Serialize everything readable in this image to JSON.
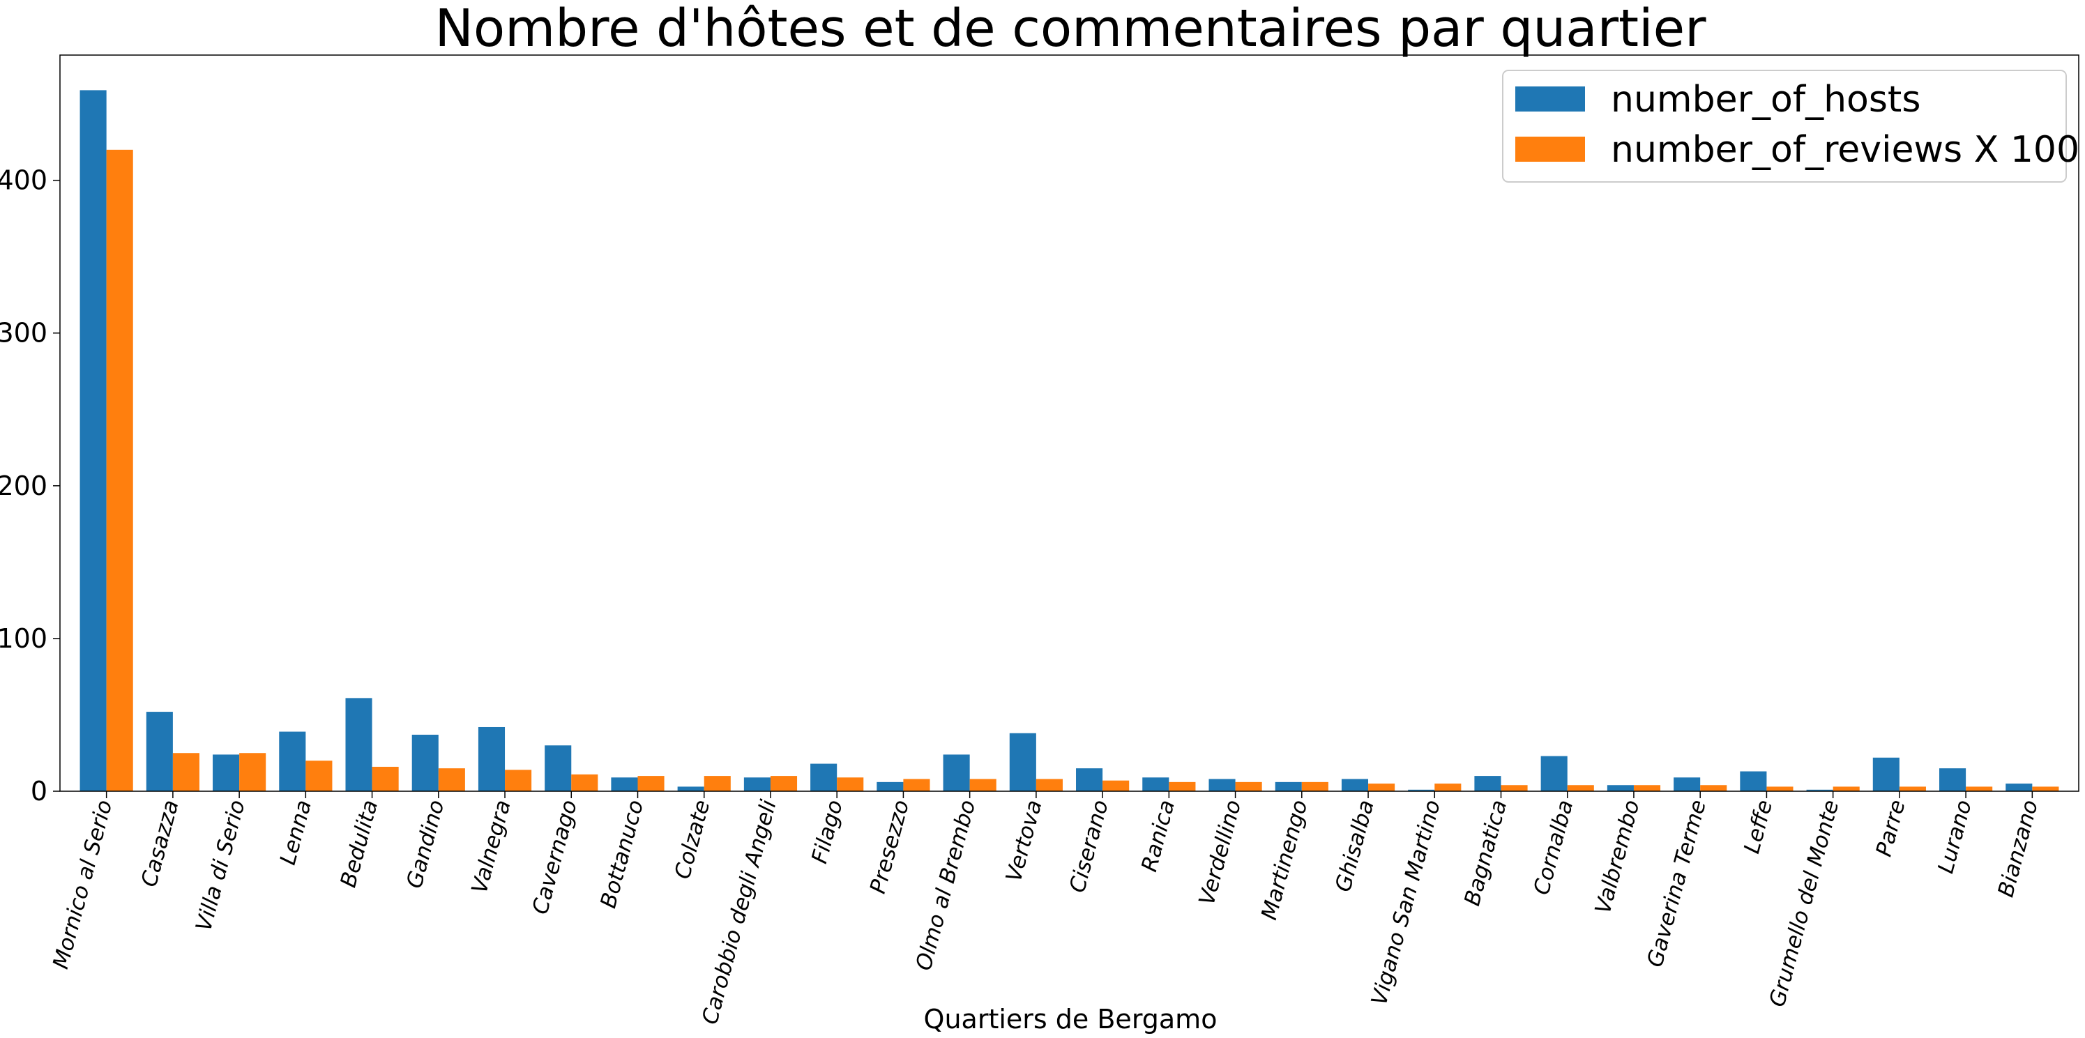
{
  "chart_data": {
    "type": "bar",
    "title": "Nombre d'hôtes et de commentaires par quartier",
    "xlabel": "Quartiers de Bergamo",
    "ylabel": "",
    "ylim": [
      0,
      482
    ],
    "yticks": [
      0,
      100,
      200,
      300,
      400
    ],
    "grid": false,
    "legend_position": "top-right",
    "categories": [
      "Mornico al Serio",
      "Casazza",
      "Villa di Serio",
      "Lenna",
      "Bedulita",
      "Gandino",
      "Valnegra",
      "Cavernago",
      "Bottanuco",
      "Colzate",
      "Carobbio degli Angeli",
      "Filago",
      "Presezzo",
      "Olmo al Brembo",
      "Vertova",
      "Ciserano",
      "Ranica",
      "Verdellino",
      "Martinengo",
      "Ghisalba",
      "Vigano San Martino",
      "Bagnatica",
      "Cornalba",
      "Valbrembo",
      "Gaverina Terme",
      "Leffe",
      "Grumello del Monte",
      "Parre",
      "Lurano",
      "Bianzano"
    ],
    "series": [
      {
        "name": "number_of_hosts",
        "color": "#1f77b4",
        "values": [
          459,
          52,
          24,
          39,
          61,
          37,
          42,
          30,
          9,
          3,
          9,
          18,
          6,
          24,
          38,
          15,
          9,
          8,
          6,
          8,
          1,
          10,
          23,
          4,
          9,
          13,
          1,
          22,
          15,
          5
        ]
      },
      {
        "name": "number_of_reviews X 100",
        "color": "#ff7f0e",
        "values": [
          420,
          25,
          25,
          20,
          16,
          15,
          14,
          11,
          10,
          10,
          10,
          9,
          8,
          8,
          8,
          7,
          6,
          6,
          6,
          5,
          5,
          4,
          4,
          4,
          4,
          3,
          3,
          3,
          3,
          3
        ]
      }
    ]
  }
}
